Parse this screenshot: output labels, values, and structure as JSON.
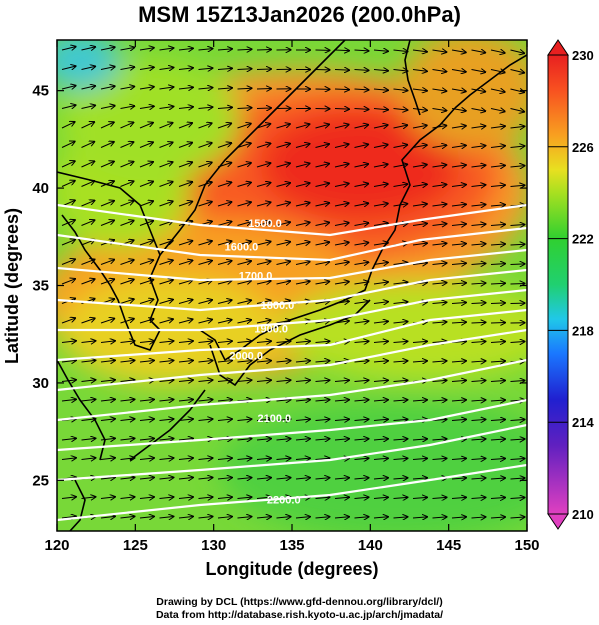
{
  "title": "MSM 15Z13Jan2026 (200.0hPa)",
  "axes": {
    "xlabel": "Longitude (degrees)",
    "ylabel": "Latitude  (degrees)",
    "x_range": [
      120,
      150
    ],
    "y_range": [
      22.4,
      47.6
    ],
    "x_ticks": [
      120,
      125,
      130,
      135,
      140,
      145,
      150
    ],
    "y_ticks": [
      25,
      30,
      35,
      40,
      45
    ]
  },
  "colorbar": {
    "range": [
      210,
      230
    ],
    "tick_labels": [
      "230",
      "226",
      "222",
      "218",
      "214",
      "210"
    ],
    "tick_values": [
      230,
      226,
      222,
      218,
      214,
      210
    ],
    "stops": [
      {
        "v": 210,
        "c": "#e040c0"
      },
      {
        "v": 213,
        "c": "#6020c0"
      },
      {
        "v": 215,
        "c": "#2020d0"
      },
      {
        "v": 217,
        "c": "#1a78ff"
      },
      {
        "v": 218.5,
        "c": "#20c8e8"
      },
      {
        "v": 220,
        "c": "#20d070"
      },
      {
        "v": 222,
        "c": "#30d030"
      },
      {
        "v": 224,
        "c": "#a8e020"
      },
      {
        "v": 225,
        "c": "#e8e020"
      },
      {
        "v": 226.5,
        "c": "#f8a020"
      },
      {
        "v": 228.5,
        "c": "#f85020"
      },
      {
        "v": 230,
        "c": "#e82020"
      }
    ]
  },
  "contours": [
    {
      "label": "1500.0",
      "lon": 132.2,
      "lat": 38.0
    },
    {
      "label": "1600.0",
      "lon": 130.7,
      "lat": 36.8
    },
    {
      "label": "1700.0",
      "lon": 131.6,
      "lat": 35.3
    },
    {
      "label": "1800.0",
      "lon": 133.0,
      "lat": 33.8
    },
    {
      "label": "1900.0",
      "lon": 132.6,
      "lat": 32.6
    },
    {
      "label": "2000.0",
      "lon": 131.0,
      "lat": 31.2
    },
    {
      "label": "2100.0",
      "lon": 132.8,
      "lat": 28.0
    },
    {
      "label": "2200.0",
      "lon": 133.4,
      "lat": 23.8
    }
  ],
  "credits": {
    "line1": "Drawing by DCL (https://www.gfd-dennou.org/library/dcl/)",
    "line2": "Data from http://database.rish.kyoto-u.ac.jp/arch/jmadata/"
  }
}
